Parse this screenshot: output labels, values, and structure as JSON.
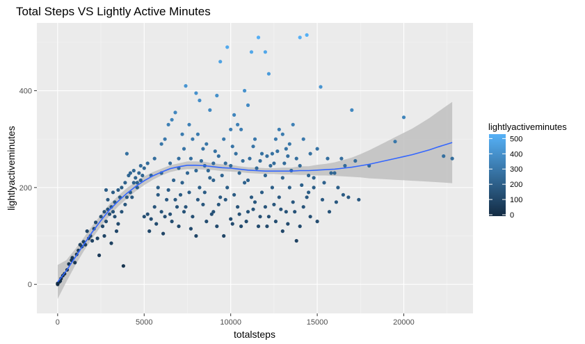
{
  "chart_data": {
    "type": "scatter",
    "title": "Total Steps VS Lightly Active Minutes",
    "xlabel": "totalsteps",
    "ylabel": "lightlyactiveminutes",
    "xlim": [
      -1200,
      24000
    ],
    "ylim": [
      -60,
      540
    ],
    "xticks": [
      0,
      5000,
      10000,
      15000,
      20000
    ],
    "yticks": [
      0,
      200,
      400
    ],
    "grid": true,
    "background": "#ebebeb",
    "legend": {
      "title": "lightlyactiveminutes",
      "placement": "right",
      "breaks": [
        500,
        400,
        300,
        200,
        100,
        0
      ],
      "low_color": "#132b43",
      "high_color": "#56b1f7"
    },
    "smooth": {
      "method": "loess",
      "color": "#3366ff",
      "ribbon_color": "#bfbfbf",
      "x": [
        0,
        500,
        1000,
        1500,
        2000,
        2500,
        3000,
        3500,
        4000,
        4500,
        5000,
        5500,
        6000,
        6500,
        7000,
        7500,
        8000,
        8500,
        9000,
        9500,
        10000,
        10500,
        11000,
        11500,
        12000,
        12500,
        13000,
        13500,
        14000,
        14500,
        15000,
        15500,
        16000,
        16500,
        17000,
        17500,
        18000,
        18500,
        19000,
        19500,
        20000,
        20500,
        21000,
        21500,
        22000,
        22800
      ],
      "y": [
        5,
        28,
        55,
        82,
        108,
        132,
        154,
        172,
        188,
        202,
        214,
        224,
        232,
        239,
        243,
        246,
        246,
        245,
        243,
        241,
        240,
        238,
        236,
        235,
        234,
        234,
        234,
        234,
        235,
        235,
        236,
        237,
        238,
        240,
        242,
        245,
        248,
        252,
        256,
        260,
        264,
        268,
        273,
        278,
        284,
        293
      ],
      "lower": [
        -30,
        5,
        38,
        68,
        95,
        120,
        142,
        161,
        177,
        192,
        205,
        216,
        225,
        232,
        236,
        238,
        238,
        237,
        236,
        234,
        233,
        232,
        230,
        229,
        228,
        228,
        227,
        227,
        226,
        226,
        225,
        225,
        224,
        223,
        222,
        221,
        219,
        218,
        217,
        216,
        215,
        214,
        213,
        212,
        211,
        209
      ],
      "upper": [
        40,
        50,
        72,
        96,
        121,
        144,
        166,
        183,
        199,
        212,
        223,
        232,
        239,
        246,
        250,
        254,
        254,
        253,
        250,
        248,
        247,
        244,
        242,
        241,
        240,
        240,
        241,
        241,
        244,
        244,
        247,
        249,
        252,
        257,
        262,
        269,
        277,
        286,
        295,
        304,
        313,
        322,
        333,
        344,
        357,
        377
      ]
    },
    "points": [
      [
        0,
        0
      ],
      [
        100,
        5
      ],
      [
        200,
        12
      ],
      [
        300,
        18
      ],
      [
        0,
        2
      ],
      [
        150,
        7
      ],
      [
        400,
        22
      ],
      [
        550,
        30
      ],
      [
        650,
        42
      ],
      [
        800,
        50
      ],
      [
        850,
        55
      ],
      [
        1000,
        45
      ],
      [
        1100,
        62
      ],
      [
        1200,
        70
      ],
      [
        1300,
        82
      ],
      [
        1400,
        78
      ],
      [
        1500,
        88
      ],
      [
        1600,
        82
      ],
      [
        1700,
        110
      ],
      [
        1800,
        95
      ],
      [
        1900,
        100
      ],
      [
        2000,
        90
      ],
      [
        2100,
        115
      ],
      [
        2200,
        128
      ],
      [
        2300,
        95
      ],
      [
        2400,
        60
      ],
      [
        2500,
        140
      ],
      [
        2600,
        120
      ],
      [
        2700,
        150
      ],
      [
        2800,
        130
      ],
      [
        2900,
        155
      ],
      [
        3000,
        145
      ],
      [
        3100,
        160
      ],
      [
        3200,
        190
      ],
      [
        3300,
        170
      ],
      [
        3400,
        110
      ],
      [
        3500,
        195
      ],
      [
        3600,
        180
      ],
      [
        3700,
        200
      ],
      [
        3800,
        38
      ],
      [
        3900,
        210
      ],
      [
        4000,
        180
      ],
      [
        4100,
        225
      ],
      [
        4200,
        230
      ],
      [
        4300,
        180
      ],
      [
        4400,
        210
      ],
      [
        4500,
        220
      ],
      [
        4600,
        200
      ],
      [
        4700,
        230
      ],
      [
        4800,
        215
      ],
      [
        4900,
        225
      ],
      [
        5000,
        240
      ],
      [
        2800,
        195
      ],
      [
        2900,
        175
      ],
      [
        3100,
        85
      ],
      [
        3300,
        140
      ],
      [
        3500,
        125
      ],
      [
        3700,
        150
      ],
      [
        3900,
        165
      ],
      [
        4000,
        270
      ],
      [
        4200,
        190
      ],
      [
        4400,
        235
      ],
      [
        4600,
        210
      ],
      [
        4800,
        245
      ],
      [
        5000,
        140
      ],
      [
        5200,
        250
      ],
      [
        5400,
        225
      ],
      [
        5600,
        260
      ],
      [
        5800,
        200
      ],
      [
        6000,
        290
      ],
      [
        6200,
        300
      ],
      [
        6400,
        330
      ],
      [
        6600,
        340
      ],
      [
        6800,
        355
      ],
      [
        7000,
        260
      ],
      [
        7200,
        310
      ],
      [
        7400,
        410
      ],
      [
        7600,
        330
      ],
      [
        7800,
        300
      ],
      [
        8000,
        395
      ],
      [
        8200,
        380
      ],
      [
        8400,
        280
      ],
      [
        8600,
        290
      ],
      [
        8800,
        360
      ],
      [
        9000,
        250
      ],
      [
        9200,
        390
      ],
      [
        9400,
        460
      ],
      [
        9600,
        300
      ],
      [
        9800,
        490
      ],
      [
        10000,
        320
      ],
      [
        10200,
        350
      ],
      [
        10400,
        330
      ],
      [
        10600,
        320
      ],
      [
        10800,
        400
      ],
      [
        11000,
        370
      ],
      [
        11200,
        480
      ],
      [
        11400,
        300
      ],
      [
        11600,
        510
      ],
      [
        11800,
        270
      ],
      [
        12000,
        480
      ],
      [
        12200,
        435
      ],
      [
        12400,
        270
      ],
      [
        12600,
        300
      ],
      [
        12800,
        320
      ],
      [
        13000,
        310
      ],
      [
        13200,
        280
      ],
      [
        13400,
        290
      ],
      [
        13600,
        330
      ],
      [
        13800,
        260
      ],
      [
        14000,
        510
      ],
      [
        14200,
        300
      ],
      [
        14400,
        515
      ],
      [
        14600,
        270
      ],
      [
        14800,
        200
      ],
      [
        15000,
        280
      ],
      [
        15200,
        408
      ],
      [
        15400,
        210
      ],
      [
        15600,
        260
      ],
      [
        15800,
        230
      ],
      [
        16000,
        230
      ],
      [
        16200,
        200
      ],
      [
        16400,
        260
      ],
      [
        16600,
        245
      ],
      [
        16800,
        180
      ],
      [
        17000,
        360
      ],
      [
        17200,
        255
      ],
      [
        17400,
        175
      ],
      [
        18000,
        245
      ],
      [
        19500,
        295
      ],
      [
        20000,
        345
      ],
      [
        22300,
        265
      ],
      [
        22800,
        260
      ],
      [
        5200,
        145
      ],
      [
        5400,
        135
      ],
      [
        5600,
        160
      ],
      [
        5800,
        185
      ],
      [
        6000,
        150
      ],
      [
        6200,
        140
      ],
      [
        6400,
        195
      ],
      [
        6600,
        130
      ],
      [
        6800,
        175
      ],
      [
        7000,
        120
      ],
      [
        7200,
        210
      ],
      [
        7400,
        160
      ],
      [
        7600,
        190
      ],
      [
        7800,
        140
      ],
      [
        8000,
        100
      ],
      [
        8200,
        200
      ],
      [
        8400,
        165
      ],
      [
        8600,
        130
      ],
      [
        8800,
        220
      ],
      [
        9000,
        150
      ],
      [
        9200,
        120
      ],
      [
        9400,
        180
      ],
      [
        9600,
        100
      ],
      [
        9800,
        200
      ],
      [
        10000,
        135
      ],
      [
        10200,
        185
      ],
      [
        10400,
        160
      ],
      [
        10600,
        120
      ],
      [
        10800,
        210
      ],
      [
        11000,
        150
      ],
      [
        11200,
        180
      ],
      [
        11400,
        170
      ],
      [
        11600,
        120
      ],
      [
        11800,
        190
      ],
      [
        12000,
        160
      ],
      [
        12200,
        140
      ],
      [
        12400,
        200
      ],
      [
        12600,
        130
      ],
      [
        12800,
        180
      ],
      [
        13000,
        110
      ],
      [
        13200,
        150
      ],
      [
        13400,
        200
      ],
      [
        13600,
        170
      ],
      [
        13800,
        90
      ],
      [
        14000,
        120
      ],
      [
        14200,
        160
      ],
      [
        14400,
        180
      ],
      [
        14600,
        140
      ],
      [
        14800,
        220
      ],
      [
        15000,
        130
      ],
      [
        6000,
        230
      ],
      [
        6500,
        250
      ],
      [
        7000,
        240
      ],
      [
        7500,
        230
      ],
      [
        8000,
        235
      ],
      [
        8500,
        245
      ],
      [
        9000,
        215
      ],
      [
        9500,
        225
      ],
      [
        10000,
        245
      ],
      [
        10500,
        230
      ],
      [
        11000,
        215
      ],
      [
        11500,
        240
      ],
      [
        12000,
        225
      ],
      [
        12500,
        250
      ],
      [
        13000,
        220
      ],
      [
        13500,
        235
      ],
      [
        14000,
        245
      ],
      [
        14500,
        225
      ],
      [
        6300,
        175
      ],
      [
        6700,
        215
      ],
      [
        7100,
        185
      ],
      [
        7300,
        280
      ],
      [
        7700,
        260
      ],
      [
        8100,
        310
      ],
      [
        8300,
        255
      ],
      [
        8700,
        235
      ],
      [
        9100,
        275
      ],
      [
        9300,
        265
      ],
      [
        9700,
        250
      ],
      [
        10100,
        285
      ],
      [
        10300,
        270
      ],
      [
        10700,
        255
      ],
      [
        11100,
        260
      ],
      [
        11300,
        285
      ],
      [
        11700,
        255
      ],
      [
        12100,
        265
      ],
      [
        12300,
        245
      ],
      [
        12700,
        275
      ],
      [
        13100,
        250
      ],
      [
        13300,
        265
      ],
      [
        5300,
        110
      ],
      [
        5700,
        125
      ],
      [
        6100,
        105
      ],
      [
        6500,
        145
      ],
      [
        6900,
        160
      ],
      [
        7300,
        150
      ],
      [
        7700,
        115
      ],
      [
        8100,
        175
      ],
      [
        8500,
        190
      ],
      [
        8900,
        145
      ],
      [
        9300,
        165
      ],
      [
        9700,
        175
      ],
      [
        10100,
        125
      ],
      [
        10500,
        145
      ],
      [
        10900,
        130
      ],
      [
        11300,
        155
      ],
      [
        11700,
        140
      ],
      [
        12100,
        120
      ],
      [
        12500,
        165
      ],
      [
        12900,
        155
      ],
      [
        13300,
        125
      ],
      [
        13700,
        150
      ],
      [
        14100,
        205
      ],
      [
        14500,
        190
      ],
      [
        15300,
        175
      ],
      [
        15700,
        150
      ],
      [
        16100,
        170
      ],
      [
        16500,
        185
      ],
      [
        2700,
        100
      ],
      [
        3200,
        150
      ]
    ]
  }
}
